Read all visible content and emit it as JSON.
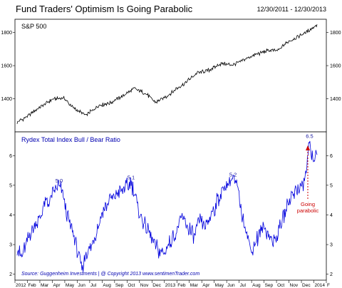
{
  "header": {
    "title": "Fund Traders' Optimism Is Going Parabolic",
    "date_range": "12/30/2011 - 12/30/2013"
  },
  "source_text": "Source:  Guggenheim Investments  |  @ Copyright 2013  www.sentimenTrader.com",
  "colors": {
    "spx_line": "#000000",
    "ratio_line": "#0000dd",
    "ratio_label": "#0000b0",
    "annotation": "#cc0000",
    "frame": "#000000"
  },
  "chart_data": [
    {
      "type": "line",
      "panel": "top",
      "label": "S&P 500",
      "ylim": [
        1200,
        1880
      ],
      "yticks": [
        1400,
        1600,
        1800
      ],
      "series": [
        {
          "name": "S&P 500",
          "x": [
            0,
            0.04,
            0.08,
            0.12,
            0.155,
            0.19,
            0.23,
            0.27,
            0.31,
            0.35,
            0.39,
            0.43,
            0.46,
            0.5,
            0.53,
            0.56,
            0.6,
            0.64,
            0.68,
            0.72,
            0.76,
            0.8,
            0.84,
            0.87,
            0.9,
            0.93,
            0.96,
            1.0
          ],
          "values": [
            1258,
            1300,
            1355,
            1398,
            1405,
            1340,
            1300,
            1358,
            1375,
            1415,
            1462,
            1430,
            1378,
            1415,
            1460,
            1495,
            1555,
            1572,
            1612,
            1605,
            1640,
            1670,
            1692,
            1690,
            1742,
            1770,
            1798,
            1848
          ]
        }
      ]
    },
    {
      "type": "line",
      "panel": "bottom",
      "label": "Rydex Total Index Bull / Bear Ratio",
      "ylim": [
        1.8,
        6.8
      ],
      "yticks": [
        2,
        3,
        4,
        5,
        6
      ],
      "peaks": [
        {
          "x": 0.14,
          "value": 5.0,
          "label": "5.0"
        },
        {
          "x": 0.38,
          "value": 5.1,
          "label": "5.1"
        },
        {
          "x": 0.72,
          "value": 5.2,
          "label": "5.2"
        },
        {
          "x": 0.975,
          "value": 6.5,
          "label": "6.5"
        }
      ],
      "annotation": {
        "text_line1": "Going",
        "text_line2": "parabolic"
      },
      "series": [
        {
          "name": "Rydex Total Index Bull / Bear Ratio",
          "x": [
            0,
            0.015,
            0.03,
            0.05,
            0.07,
            0.09,
            0.11,
            0.125,
            0.14,
            0.155,
            0.17,
            0.19,
            0.205,
            0.215,
            0.23,
            0.25,
            0.27,
            0.29,
            0.31,
            0.33,
            0.35,
            0.37,
            0.38,
            0.395,
            0.41,
            0.43,
            0.45,
            0.47,
            0.49,
            0.51,
            0.53,
            0.55,
            0.57,
            0.59,
            0.61,
            0.63,
            0.65,
            0.67,
            0.69,
            0.705,
            0.72,
            0.735,
            0.75,
            0.765,
            0.78,
            0.8,
            0.82,
            0.84,
            0.86,
            0.88,
            0.9,
            0.92,
            0.94,
            0.955,
            0.965,
            0.975,
            0.985,
            1.0
          ],
          "values": [
            2.9,
            2.6,
            3.0,
            3.5,
            3.8,
            4.3,
            4.5,
            4.8,
            5.0,
            4.6,
            3.9,
            3.3,
            2.6,
            2.1,
            2.7,
            3.0,
            3.6,
            4.2,
            4.5,
            4.7,
            4.8,
            5.0,
            5.1,
            4.6,
            4.0,
            3.6,
            3.2,
            2.8,
            2.7,
            3.1,
            3.4,
            3.9,
            3.6,
            3.3,
            3.8,
            3.6,
            4.1,
            4.5,
            4.9,
            5.1,
            5.2,
            4.9,
            4.0,
            3.4,
            2.8,
            3.2,
            3.6,
            3.3,
            3.1,
            3.7,
            4.3,
            4.8,
            4.9,
            5.0,
            5.5,
            6.5,
            5.8,
            6.2
          ]
        }
      ]
    }
  ],
  "x_axis": {
    "ticks": [
      "2012",
      "Feb",
      "Mar",
      "Apr",
      "May",
      "Jun",
      "Jul",
      "Aug",
      "Sep",
      "Oct",
      "Nov",
      "Dec",
      "2013",
      "Feb",
      "Mar",
      "Apr",
      "May",
      "Jun",
      "Jul",
      "Aug",
      "Sep",
      "Oct",
      "Nov",
      "Dec",
      "2014",
      "F"
    ]
  }
}
